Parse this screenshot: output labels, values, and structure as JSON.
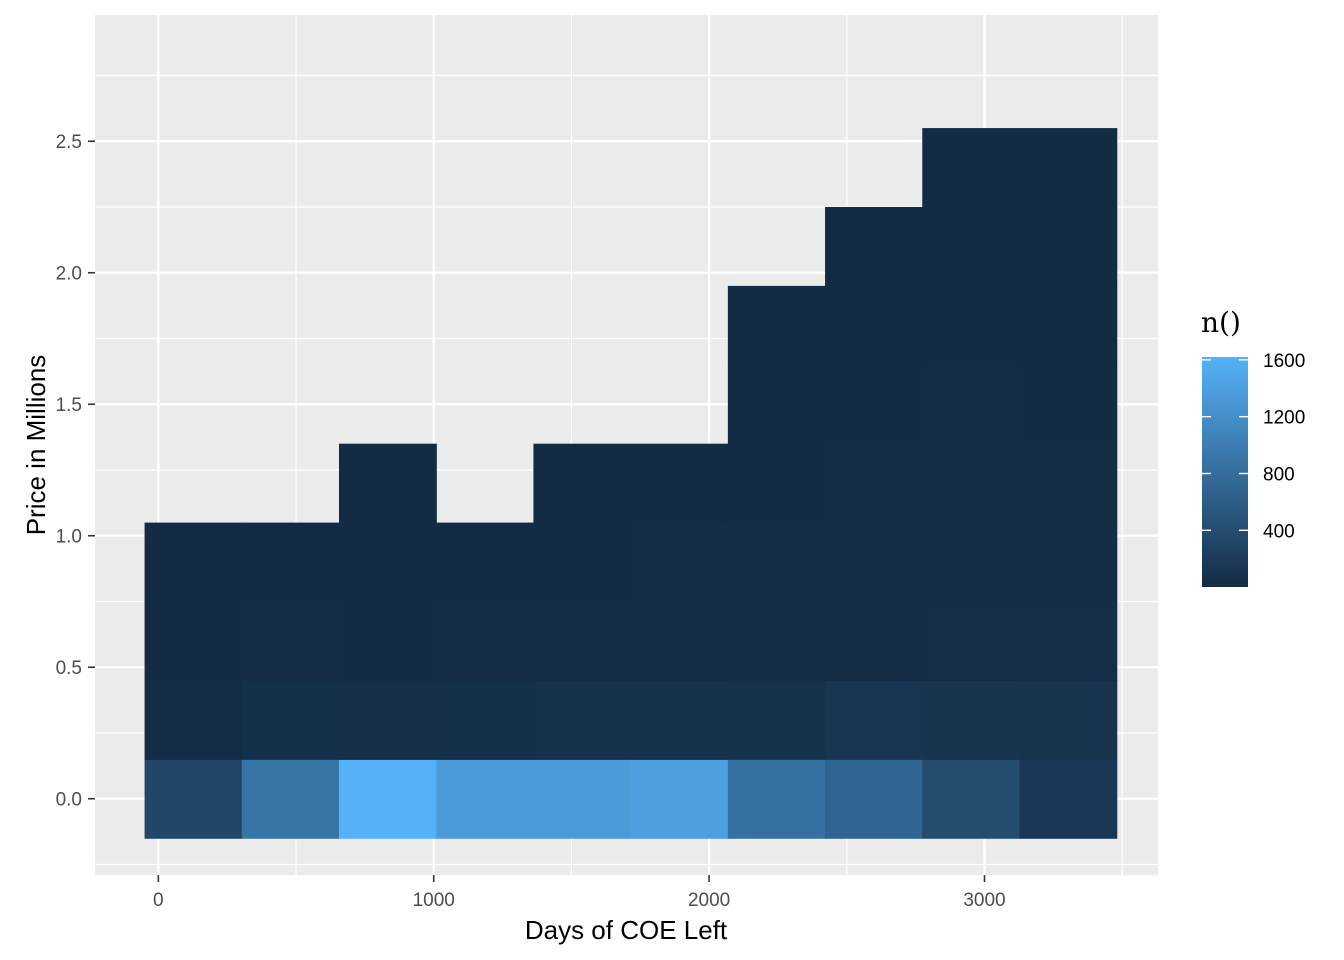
{
  "chart_data": {
    "type": "heatmap",
    "xlabel": "Days of COE Left",
    "ylabel": "Price in Millions",
    "xlim": [
      -230,
      3630
    ],
    "ylim": [
      -0.29,
      2.98
    ],
    "x_ticks": [
      0,
      1000,
      2000,
      3000
    ],
    "x_tick_labels": [
      "0",
      "1000",
      "2000",
      "3000"
    ],
    "y_ticks": [
      0.0,
      0.5,
      1.0,
      1.5,
      2.0,
      2.5
    ],
    "y_tick_labels": [
      "0.0",
      "0.5",
      "1.0",
      "1.5",
      "2.0",
      "2.5"
    ],
    "grid": true,
    "x_bin_edges": [
      -50,
      303,
      656,
      1009,
      1362,
      1715,
      2068,
      2421,
      2774,
      3127,
      3480
    ],
    "y_bin_edges": [
      -0.15,
      0.15,
      0.45,
      0.75,
      1.05,
      1.35,
      1.65,
      1.95,
      2.25,
      2.55,
      2.85
    ],
    "counts": [
      [
        330,
        30,
        10,
        10,
        null,
        null,
        null,
        null,
        null,
        null
      ],
      [
        900,
        60,
        15,
        10,
        null,
        null,
        null,
        null,
        null,
        null
      ],
      [
        1620,
        50,
        10,
        10,
        5,
        null,
        null,
        null,
        null,
        null
      ],
      [
        1350,
        60,
        15,
        10,
        null,
        null,
        null,
        null,
        null,
        null
      ],
      [
        1350,
        70,
        30,
        10,
        5,
        null,
        null,
        null,
        null,
        null
      ],
      [
        1400,
        70,
        30,
        15,
        5,
        null,
        null,
        null,
        null,
        null
      ],
      [
        850,
        70,
        40,
        20,
        10,
        5,
        5,
        null,
        null,
        null
      ],
      [
        700,
        130,
        40,
        30,
        15,
        10,
        10,
        10,
        null,
        null
      ],
      [
        400,
        110,
        50,
        40,
        25,
        20,
        10,
        10,
        5,
        null
      ],
      [
        160,
        100,
        50,
        40,
        20,
        10,
        5,
        5,
        3,
        null
      ]
    ],
    "legend": {
      "title": "n()",
      "position": "right",
      "breaks": [
        400,
        800,
        1200,
        1600
      ],
      "break_labels": [
        "400",
        "800",
        "1200",
        "1600"
      ],
      "range": [
        1,
        1620
      ],
      "low_color": "#132B43",
      "high_color": "#56B1F7"
    }
  }
}
